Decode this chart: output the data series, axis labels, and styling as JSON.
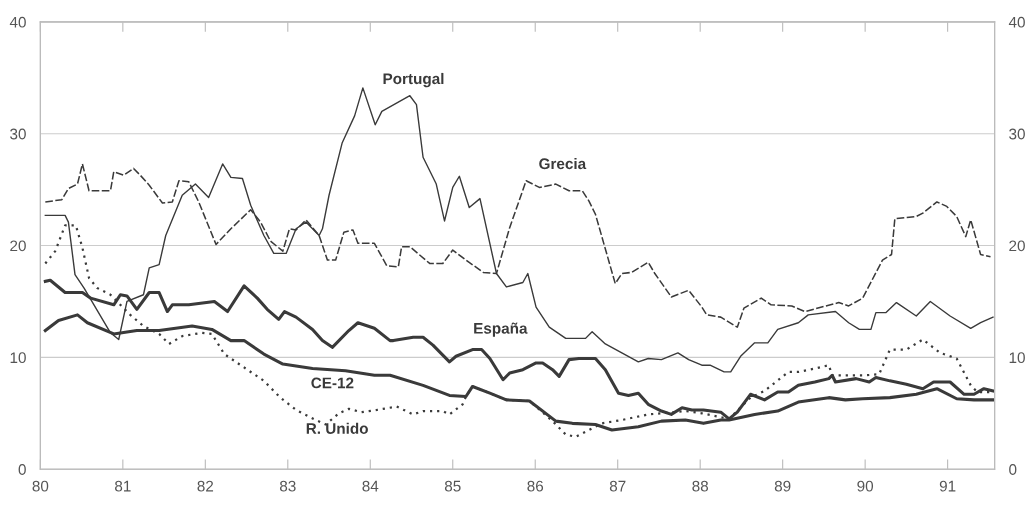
{
  "chart_data": {
    "type": "line",
    "xlim": [
      80.0,
      91.57
    ],
    "xticks": [
      80,
      81,
      82,
      83,
      84,
      85,
      86,
      87,
      88,
      89,
      90,
      91
    ],
    "ylim": [
      0,
      40
    ],
    "yticks": [
      0,
      10,
      20,
      30,
      40
    ],
    "y2lim": [
      0,
      40
    ],
    "y2ticks": [
      0,
      10,
      20,
      30,
      40
    ],
    "grid": "y",
    "series": [
      {
        "name": "Portugal",
        "color": "#3a3a3a",
        "line_style": "solid",
        "x": [
          80.06,
          80.3,
          80.34,
          80.42,
          80.53,
          80.85,
          80.95,
          81.05,
          81.25,
          81.32,
          81.44,
          81.52,
          81.72,
          81.88,
          82.04,
          82.21,
          82.31,
          82.45,
          82.55,
          82.71,
          82.83,
          82.98,
          83.1,
          83.22,
          83.38,
          83.42,
          83.5,
          83.66,
          83.81,
          83.91,
          84.06,
          84.14,
          84.48,
          84.56,
          84.64,
          84.8,
          84.9,
          85.0,
          85.08,
          85.2,
          85.33,
          85.53,
          85.65,
          85.85,
          85.91,
          86.01,
          86.17,
          86.37,
          86.61,
          86.69,
          86.85,
          87.05,
          87.25,
          87.37,
          87.53,
          87.73,
          87.86,
          88.02,
          88.12,
          88.29,
          88.37,
          88.49,
          88.66,
          88.82,
          88.94,
          89.19,
          89.31,
          89.64,
          89.8,
          89.93,
          90.07,
          90.13,
          90.25,
          90.38,
          90.62,
          90.79,
          91.03,
          91.28,
          91.4,
          91.55
        ],
        "values": [
          22.7,
          22.7,
          22.1,
          17.4,
          16.2,
          12.2,
          11.6,
          15,
          15.6,
          18,
          18.3,
          20.9,
          24.5,
          25.5,
          24.3,
          27.3,
          26.1,
          26,
          23.6,
          20.9,
          19.3,
          19.3,
          21.5,
          22.1,
          20.9,
          21.5,
          24.5,
          29.2,
          31.6,
          34.1,
          30.8,
          32,
          33.4,
          32.6,
          27.9,
          25.5,
          22.2,
          25.2,
          26.2,
          23.4,
          24.2,
          17.5,
          16.3,
          16.7,
          17.5,
          14.5,
          12.7,
          11.7,
          11.7,
          12.3,
          11.2,
          10.4,
          9.6,
          9.9,
          9.8,
          10.4,
          9.8,
          9.3,
          9.3,
          8.7,
          8.7,
          10.1,
          11.3,
          11.3,
          12.5,
          13.1,
          13.8,
          14.1,
          13.1,
          12.5,
          12.5,
          14,
          14,
          14.9,
          13.7,
          15,
          13.7,
          12.6,
          13.1,
          13.6
        ]
      },
      {
        "name": "Grecia",
        "color": "#3a3a3a",
        "line_style": "dashed",
        "x": [
          80.06,
          80.26,
          80.34,
          80.45,
          80.51,
          80.59,
          80.85,
          80.89,
          81.01,
          81.13,
          81.21,
          81.32,
          81.48,
          81.6,
          81.68,
          81.8,
          81.92,
          82.13,
          82.31,
          82.55,
          82.67,
          82.79,
          82.94,
          83.02,
          83.1,
          83.22,
          83.38,
          83.48,
          83.58,
          83.68,
          83.79,
          83.85,
          84.05,
          84.2,
          84.34,
          84.38,
          84.48,
          84.72,
          84.88,
          85.0,
          85.16,
          85.37,
          85.53,
          85.69,
          85.89,
          86.05,
          86.25,
          86.41,
          86.57,
          86.65,
          86.73,
          86.97,
          87.05,
          87.17,
          87.37,
          87.45,
          87.65,
          87.86,
          88.02,
          88.08,
          88.25,
          88.45,
          88.53,
          88.74,
          88.86,
          89.11,
          89.27,
          89.68,
          89.8,
          89.97,
          90.21,
          90.32,
          90.36,
          90.62,
          90.7,
          90.87,
          90.99,
          91.11,
          91.22,
          91.28,
          91.4,
          91.52
        ],
        "values": [
          23.9,
          24.1,
          25.1,
          25.5,
          27.3,
          24.9,
          24.9,
          26.6,
          26.3,
          26.9,
          26.3,
          25.4,
          23.8,
          23.9,
          25.8,
          25.7,
          23.9,
          20.1,
          21.5,
          23.2,
          22.1,
          20.4,
          19.5,
          21.5,
          21.4,
          22.3,
          20.9,
          18.7,
          18.7,
          21.2,
          21.4,
          20.2,
          20.2,
          18.2,
          18.1,
          19.9,
          19.9,
          18.4,
          18.4,
          19.6,
          18.7,
          17.6,
          17.5,
          21.6,
          25.8,
          25.2,
          25.5,
          24.9,
          24.9,
          24,
          22.8,
          16.6,
          17.5,
          17.6,
          18.5,
          17.5,
          15.4,
          16,
          14.5,
          13.8,
          13.6,
          12.7,
          14.4,
          15.3,
          14.7,
          14.6,
          14.1,
          14.9,
          14.6,
          15.3,
          18.7,
          19.2,
          22.4,
          22.6,
          22.9,
          23.9,
          23.5,
          22.6,
          20.8,
          22.3,
          19.2,
          19
        ]
      },
      {
        "name": "España",
        "color": "#3a3a3a",
        "line_style": "solid",
        "x": [
          80.06,
          80.12,
          80.3,
          80.51,
          80.61,
          80.89,
          80.97,
          81.05,
          81.17,
          81.32,
          81.44,
          81.54,
          81.6,
          81.8,
          82.11,
          82.27,
          82.47,
          82.63,
          82.75,
          82.89,
          82.96,
          83.1,
          83.3,
          83.42,
          83.54,
          83.74,
          83.85,
          84.05,
          84.24,
          84.28,
          84.52,
          84.64,
          84.76,
          84.96,
          85.04,
          85.24,
          85.35,
          85.45,
          85.61,
          85.69,
          85.85,
          86.01,
          86.09,
          86.21,
          86.29,
          86.41,
          86.53,
          86.73,
          86.85,
          87.01,
          87.13,
          87.25,
          87.37,
          87.53,
          87.65,
          87.78,
          87.9,
          88.04,
          88.25,
          88.35,
          88.45,
          88.61,
          88.78,
          88.94,
          89.07,
          89.19,
          89.39,
          89.56,
          89.6,
          89.64,
          89.89,
          90.05,
          90.13,
          90.3,
          90.5,
          90.7,
          90.83,
          91.03,
          91.2,
          91.32,
          91.44,
          91.55
        ],
        "values": [
          16.8,
          16.9,
          15.8,
          15.8,
          15.3,
          14.7,
          15.6,
          15.5,
          14.3,
          15.8,
          15.8,
          14.1,
          14.7,
          14.7,
          15,
          14.1,
          16.4,
          15.3,
          14.3,
          13.4,
          14.1,
          13.6,
          12.5,
          11.5,
          10.9,
          12.4,
          13.1,
          12.6,
          11.5,
          11.5,
          11.8,
          11.8,
          11.1,
          9.6,
          10.1,
          10.7,
          10.7,
          9.9,
          8,
          8.6,
          8.9,
          9.5,
          9.5,
          8.9,
          8.3,
          9.8,
          9.9,
          9.9,
          8.9,
          6.8,
          6.6,
          6.8,
          5.8,
          5.2,
          4.9,
          5.5,
          5.3,
          5.3,
          5.1,
          4.5,
          5.1,
          6.7,
          6.2,
          6.9,
          6.9,
          7.5,
          7.8,
          8.1,
          8.4,
          7.8,
          8.1,
          7.8,
          8.2,
          7.9,
          7.6,
          7.2,
          7.8,
          7.8,
          6.7,
          6.7,
          7.2,
          7
        ]
      },
      {
        "name": "CE-12",
        "color": "#3a3a3a",
        "line_style": "solid",
        "x": [
          80.06,
          80.22,
          80.45,
          80.57,
          80.89,
          81.17,
          81.44,
          81.84,
          82.08,
          82.31,
          82.47,
          82.71,
          82.94,
          83.3,
          83.7,
          84.05,
          84.24,
          84.64,
          84.96,
          85.16,
          85.24,
          85.45,
          85.65,
          85.93,
          86.25,
          86.45,
          86.73,
          86.93,
          87.25,
          87.53,
          87.82,
          88.04,
          88.25,
          88.35,
          88.66,
          88.94,
          89.19,
          89.56,
          89.76,
          89.97,
          90.3,
          90.62,
          90.87,
          91.11,
          91.32,
          91.55
        ],
        "values": [
          12.4,
          13.3,
          13.8,
          13.1,
          12.1,
          12.4,
          12.4,
          12.8,
          12.5,
          11.5,
          11.5,
          10.3,
          9.4,
          9,
          8.8,
          8.4,
          8.4,
          7.5,
          6.6,
          6.5,
          7.4,
          6.8,
          6.2,
          6.1,
          4.3,
          4.1,
          4,
          3.5,
          3.8,
          4.3,
          4.4,
          4.1,
          4.4,
          4.4,
          4.9,
          5.2,
          6,
          6.4,
          6.2,
          6.3,
          6.4,
          6.7,
          7.2,
          6.3,
          6.2,
          6.2
        ]
      },
      {
        "name": "R. Unido",
        "color": "#3a3a3a",
        "line_style": "dotted",
        "x": [
          80.06,
          80.18,
          80.3,
          80.43,
          80.51,
          80.59,
          80.69,
          80.85,
          81.09,
          81.25,
          81.44,
          81.56,
          81.72,
          81.96,
          82.08,
          82.23,
          82.47,
          82.71,
          82.91,
          83.1,
          83.34,
          83.46,
          83.62,
          83.74,
          83.89,
          84.08,
          84.32,
          84.52,
          84.64,
          84.88,
          84.96,
          85.12,
          85.16,
          85.24,
          85.45,
          85.65,
          85.93,
          86.21,
          86.37,
          86.49,
          86.65,
          86.81,
          87.05,
          87.37,
          87.53,
          87.82,
          88.02,
          88.35,
          88.61,
          88.78,
          89.07,
          89.19,
          89.39,
          89.56,
          89.6,
          89.76,
          90.01,
          90.17,
          90.3,
          90.5,
          90.7,
          90.91,
          91.11,
          91.28,
          91.36,
          91.55
        ],
        "values": [
          18.4,
          19.5,
          21.8,
          21.8,
          19.8,
          17.1,
          16.2,
          15.6,
          13.8,
          12.8,
          12.1,
          11.2,
          11.9,
          12.2,
          12.1,
          10.3,
          9.1,
          7.9,
          6.4,
          5.3,
          4.4,
          4,
          5,
          5.4,
          5.1,
          5.3,
          5.6,
          4.9,
          5.2,
          5.2,
          4.9,
          5.8,
          6.5,
          7.4,
          6.8,
          6.2,
          6.1,
          4.3,
          3.1,
          2.9,
          3.5,
          4.1,
          4.4,
          4.9,
          5,
          5.2,
          5,
          4.5,
          6.4,
          7,
          8.7,
          8.7,
          9,
          9.3,
          8.4,
          8.4,
          8.4,
          8.5,
          10.7,
          10.7,
          11.6,
          10.4,
          9.9,
          7.5,
          6.9,
          6.9
        ]
      }
    ]
  }
}
